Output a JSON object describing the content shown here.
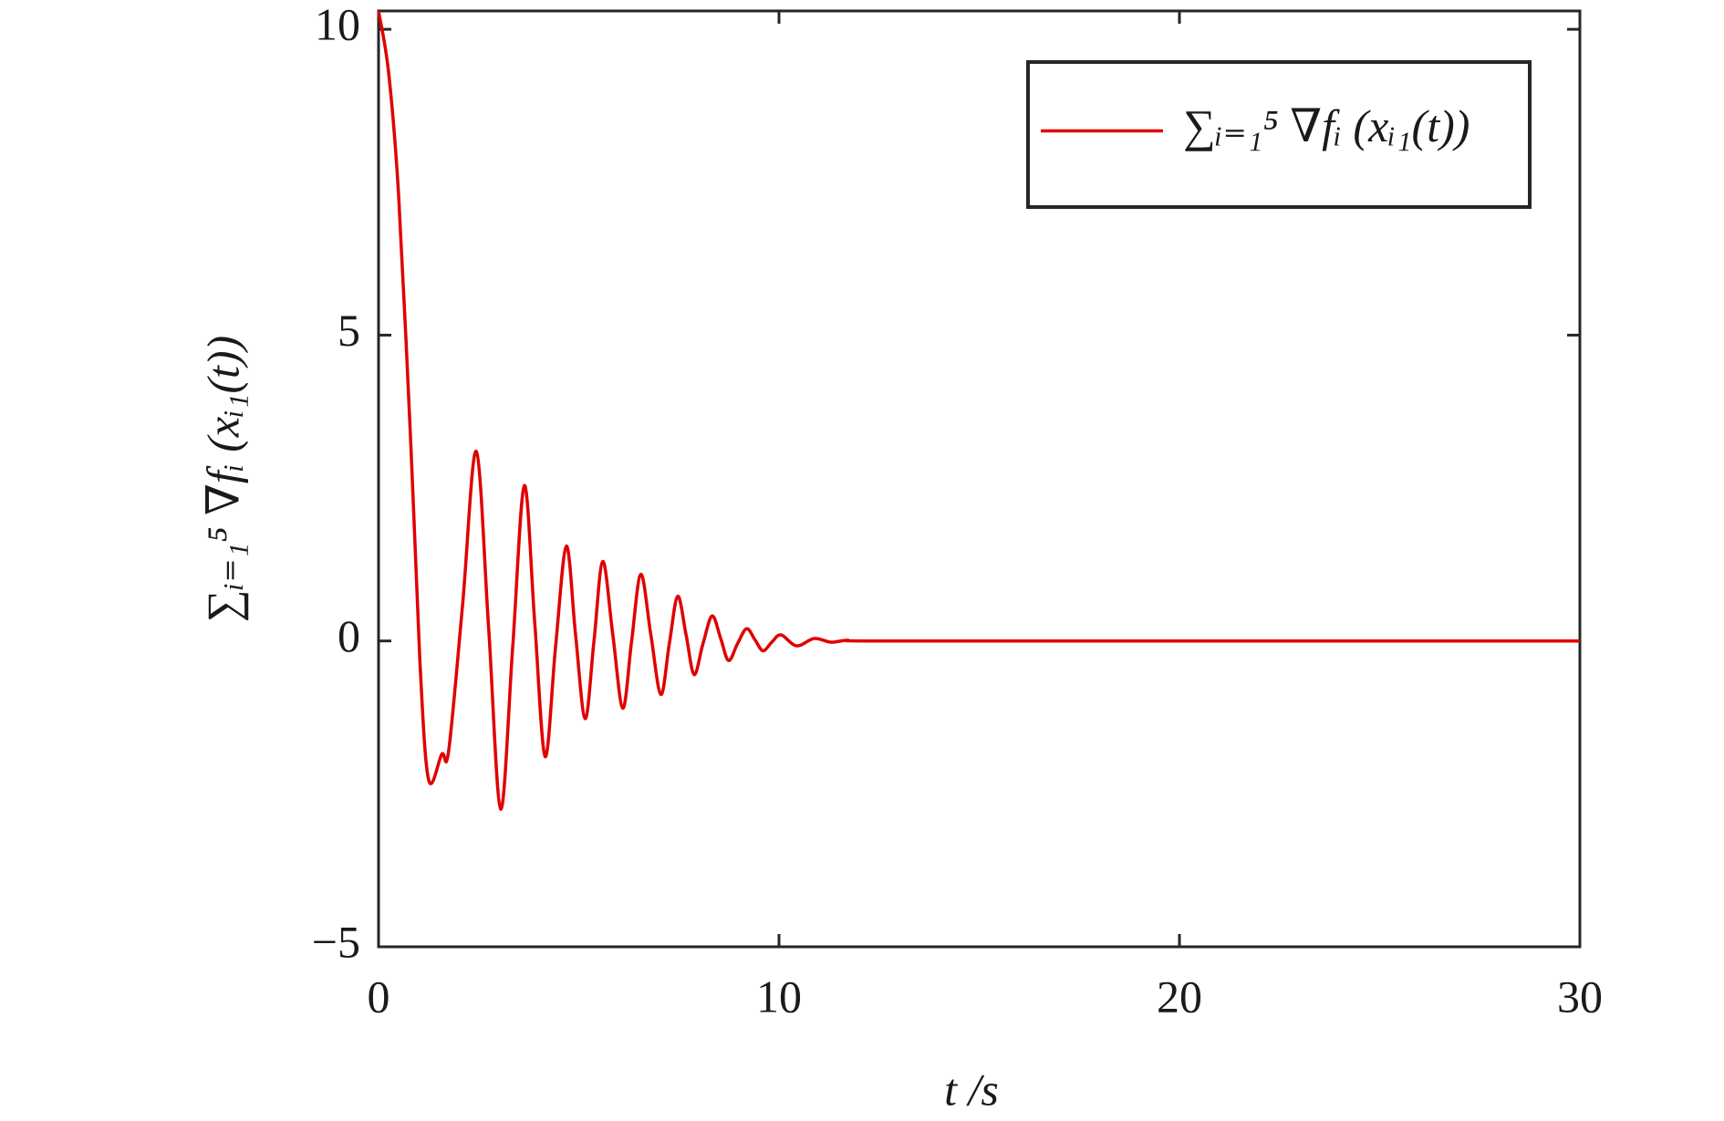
{
  "chart_data": {
    "type": "line",
    "x_label": "t /s",
    "y_label": "∑ᵢ₌₁⁵ ∇fᵢ (xᵢ₁(t))",
    "x": [
      0,
      0.25,
      0.5,
      0.8,
      1.03,
      1.25,
      1.58,
      1.75,
      2.1,
      2.44,
      2.75,
      3.05,
      3.35,
      3.64,
      3.9,
      4.16,
      4.42,
      4.69,
      4.92,
      5.16,
      5.38,
      5.6,
      5.85,
      6.1,
      6.32,
      6.55,
      6.8,
      7.05,
      7.26,
      7.47,
      7.68,
      7.88,
      8.1,
      8.33,
      8.54,
      8.74,
      8.96,
      9.19,
      9.4,
      9.6,
      9.82,
      10.05,
      10.44,
      10.88,
      11.3,
      11.7,
      12.5,
      20,
      30
    ],
    "series": [
      {
        "name": "∑ᵢ₌₁⁵ ∇fᵢ (xᵢ₁(t))",
        "color": "#e00000",
        "values": [
          10.3,
          9.3,
          7.3,
          3.3,
          -0.3,
          -2.27,
          -1.85,
          -1.8,
          0.6,
          3.1,
          0.2,
          -2.75,
          -0.1,
          2.54,
          0.3,
          -1.89,
          -0.1,
          1.55,
          0.1,
          -1.27,
          0.0,
          1.3,
          0.1,
          -1.1,
          0.0,
          1.09,
          0.1,
          -0.875,
          -0.05,
          0.73,
          0.1,
          -0.55,
          -0.05,
          0.41,
          0.05,
          -0.32,
          -0.05,
          0.2,
          0.02,
          -0.16,
          -0.02,
          0.1,
          -0.08,
          0.04,
          -0.02,
          0.01,
          0,
          0,
          0
        ]
      }
    ],
    "xlim": [
      0,
      30
    ],
    "xticks": [
      0,
      10,
      20,
      30
    ],
    "ylim": [
      -5,
      10.3
    ],
    "yticks": [
      {
        "value": -5,
        "label": "−5"
      },
      0,
      5,
      10
    ],
    "grid": false,
    "legend": "upper right"
  }
}
